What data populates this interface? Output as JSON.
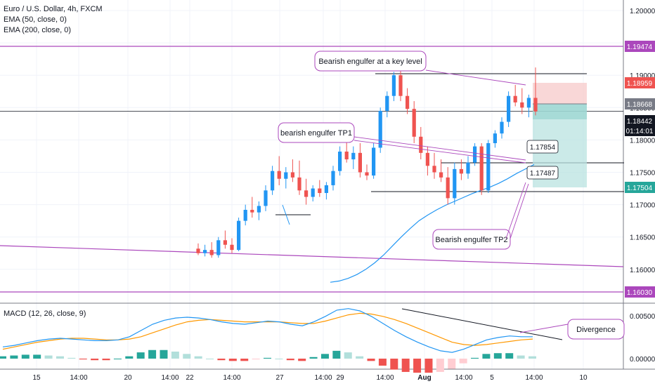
{
  "header": {
    "symbol": "Euro / U.S. Dollar, 4h, FXCM",
    "ema50": "EMA (50, close, 0)",
    "ema200": "EMA (200, close, 0)"
  },
  "macd_label": "MACD (12, 26, close, 9)",
  "colors": {
    "up": "#2196f3",
    "down": "#ef5350",
    "ema": "#2196f3",
    "signal": "#ff9800",
    "hline": "#ab47bc",
    "hist_up": "#26a69a",
    "hist_down": "#ef5350"
  },
  "price_axis": {
    "ticks": [
      "1.20000",
      "1.19500",
      "1.19000",
      "1.18500",
      "1.18000",
      "1.17500",
      "1.17000",
      "1.16500",
      "1.16000"
    ]
  },
  "macd_axis": {
    "ticks": [
      "0.00500",
      "0.00000"
    ]
  },
  "time_axis": {
    "ticks": [
      "15",
      "14:00",
      "20",
      "14:00",
      "22",
      "14:00",
      "27",
      "14:00",
      "29",
      "14:00",
      "Aug",
      "14:00",
      "5",
      "14:00",
      "10"
    ]
  },
  "price_labels": [
    {
      "value": "1.19474",
      "bg": "#ab47bc",
      "color": "#ffffff"
    },
    {
      "value": "1.18959",
      "bg": "#ef5350",
      "color": "#ffffff"
    },
    {
      "value": "1.18668",
      "bg": "#787b86",
      "color": "#ffffff"
    },
    {
      "value": "1.18442",
      "bg": "#131722",
      "color": "#ffffff"
    },
    {
      "value": "01:14:01",
      "bg": "#131722",
      "color": "#ffffff"
    },
    {
      "value": "1.17504",
      "bg": "#26a69a",
      "color": "#ffffff"
    },
    {
      "value": "1.16030",
      "bg": "#ab47bc",
      "color": "#ffffff"
    }
  ],
  "level_labels": {
    "tp1": "1.17854",
    "tp2": "1.17487"
  },
  "annotations": {
    "key_level": "Bearish engulfer at a key level",
    "tp1": "bearish engulfer TP1",
    "tp2": "Bearish engulfer TP2",
    "divergence": "Divergence"
  },
  "chart_data": {
    "type": "candlestick",
    "ylim": [
      1.1575,
      1.2015
    ],
    "macd_ylim": [
      -0.0018,
      0.0075
    ],
    "horizontal_lines": [
      1.19474,
      1.1603,
      1.18442
    ],
    "candles": [
      [
        1.1632,
        1.164,
        1.1622,
        1.1625
      ],
      [
        1.1625,
        1.1638,
        1.162,
        1.163
      ],
      [
        1.163,
        1.1642,
        1.1618,
        1.1622
      ],
      [
        1.1622,
        1.165,
        1.1618,
        1.1645
      ],
      [
        1.1645,
        1.166,
        1.1632,
        1.1638
      ],
      [
        1.1638,
        1.1648,
        1.1625,
        1.163
      ],
      [
        1.163,
        1.168,
        1.1628,
        1.1675
      ],
      [
        1.1675,
        1.17,
        1.1668,
        1.1692
      ],
      [
        1.1692,
        1.1712,
        1.168,
        1.1688
      ],
      [
        1.1688,
        1.1705,
        1.1676,
        1.1698
      ],
      [
        1.1698,
        1.173,
        1.169,
        1.1722
      ],
      [
        1.1722,
        1.176,
        1.1715,
        1.1752
      ],
      [
        1.1752,
        1.1775,
        1.173,
        1.174
      ],
      [
        1.174,
        1.1758,
        1.1725,
        1.175
      ],
      [
        1.175,
        1.177,
        1.1735,
        1.1742
      ],
      [
        1.1742,
        1.1768,
        1.1715,
        1.1722
      ],
      [
        1.1722,
        1.174,
        1.17,
        1.1712
      ],
      [
        1.1712,
        1.173,
        1.1705,
        1.1725
      ],
      [
        1.1725,
        1.1738,
        1.1712,
        1.1718
      ],
      [
        1.1718,
        1.1735,
        1.1708,
        1.173
      ],
      [
        1.173,
        1.176,
        1.1722,
        1.1752
      ],
      [
        1.1752,
        1.179,
        1.1745,
        1.1782
      ],
      [
        1.1782,
        1.18,
        1.1765,
        1.177
      ],
      [
        1.177,
        1.179,
        1.1755,
        1.178
      ],
      [
        1.178,
        1.1795,
        1.1742,
        1.175
      ],
      [
        1.175,
        1.1762,
        1.1738,
        1.1745
      ],
      [
        1.1745,
        1.1795,
        1.174,
        1.1788
      ],
      [
        1.1788,
        1.185,
        1.178,
        1.1845
      ],
      [
        1.1845,
        1.1875,
        1.1835,
        1.1868
      ],
      [
        1.1868,
        1.1905,
        1.186,
        1.19
      ],
      [
        1.19,
        1.1908,
        1.186,
        1.1868
      ],
      [
        1.1868,
        1.188,
        1.184,
        1.1848
      ],
      [
        1.1848,
        1.186,
        1.1795,
        1.1805
      ],
      [
        1.1805,
        1.182,
        1.177,
        1.178
      ],
      [
        1.178,
        1.179,
        1.1745,
        1.176
      ],
      [
        1.176,
        1.178,
        1.174,
        1.175
      ],
      [
        1.175,
        1.177,
        1.1735,
        1.1742
      ],
      [
        1.1742,
        1.1758,
        1.17,
        1.171
      ],
      [
        1.171,
        1.1765,
        1.17,
        1.1755
      ],
      [
        1.1755,
        1.177,
        1.1738,
        1.1748
      ],
      [
        1.1748,
        1.1775,
        1.174,
        1.1765
      ],
      [
        1.1765,
        1.1795,
        1.176,
        1.179
      ],
      [
        1.179,
        1.1795,
        1.1715,
        1.1722
      ],
      [
        1.1722,
        1.18,
        1.1718,
        1.1795
      ],
      [
        1.1795,
        1.1815,
        1.1788,
        1.181
      ],
      [
        1.181,
        1.1835,
        1.1802,
        1.1828
      ],
      [
        1.1828,
        1.1875,
        1.182,
        1.1868
      ],
      [
        1.1868,
        1.1885,
        1.1852,
        1.1858
      ],
      [
        1.1858,
        1.188,
        1.184,
        1.185
      ],
      [
        1.185,
        1.187,
        1.1835,
        1.1865
      ],
      [
        1.1865,
        1.1912,
        1.1838,
        1.1844
      ]
    ],
    "ema_line": [
      1.158,
      1.1582,
      1.1586,
      1.1592,
      1.16,
      1.161,
      1.1622,
      1.1636,
      1.165,
      1.1663,
      1.1675,
      1.1684,
      1.1692,
      1.1699,
      1.1705,
      1.1711,
      1.1717,
      1.1722,
      1.1727,
      1.1733,
      1.174,
      1.1748,
      1.1755,
      1.1762
    ],
    "macd_line": [
      0.0015,
      0.0017,
      0.002,
      0.0023,
      0.0025,
      0.0026,
      0.0025,
      0.0024,
      0.0023,
      0.0023,
      0.0024,
      0.0028,
      0.0036,
      0.0044,
      0.0049,
      0.0052,
      0.0053,
      0.0052,
      0.005,
      0.0047,
      0.0045,
      0.0044,
      0.0046,
      0.0048,
      0.0047,
      0.0044,
      0.0042,
      0.0047,
      0.0054,
      0.0062,
      0.0064,
      0.0061,
      0.0054,
      0.0045,
      0.0036,
      0.0028,
      0.0021,
      0.0015,
      0.001,
      0.0008,
      0.0012,
      0.0018,
      0.0024,
      0.0027,
      0.0029,
      0.0028,
      0.0028
    ],
    "signal_line": [
      0.0012,
      0.0015,
      0.0018,
      0.0021,
      0.0023,
      0.0025,
      0.0026,
      0.0026,
      0.0025,
      0.0024,
      0.0024,
      0.0025,
      0.0028,
      0.0033,
      0.0038,
      0.0043,
      0.0047,
      0.0049,
      0.005,
      0.0049,
      0.0048,
      0.0047,
      0.0047,
      0.0047,
      0.0047,
      0.0046,
      0.0045,
      0.0045,
      0.0048,
      0.0052,
      0.0056,
      0.0058,
      0.0057,
      0.0054,
      0.005,
      0.0045,
      0.0039,
      0.0033,
      0.0027,
      0.0021,
      0.0018,
      0.0017,
      0.0018,
      0.002,
      0.0022,
      0.0024,
      0.0025
    ],
    "histogram": [
      0.0003,
      0.0004,
      0.0005,
      0.0005,
      0.0004,
      0.0003,
      0.0001,
      -0.0001,
      -0.0002,
      -0.0002,
      0.0,
      0.0003,
      0.0008,
      0.0011,
      0.0011,
      0.0009,
      0.0006,
      0.0003,
      0.0,
      -0.0002,
      -0.0003,
      -0.0003,
      -0.0001,
      0.0001,
      0.0,
      -0.0002,
      -0.0003,
      0.0002,
      0.0006,
      0.001,
      0.0008,
      0.0003,
      -0.0003,
      -0.0009,
      -0.0014,
      -0.0017,
      -0.0018,
      -0.0018,
      -0.0017,
      -0.0013,
      -0.0006,
      0.0001,
      0.0006,
      0.0007,
      0.0007,
      0.0004,
      0.0003
    ]
  }
}
